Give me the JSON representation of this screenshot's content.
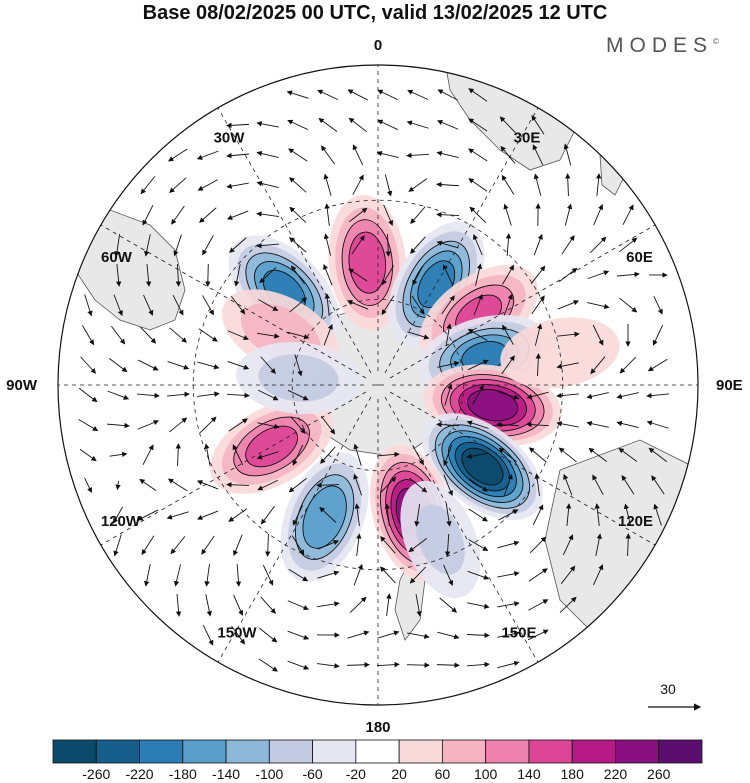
{
  "title": "Base 08/02/2025 00 UTC, valid 13/02/2025 12 UTC",
  "brand": "MODES",
  "brand_mark": "©",
  "projection": "south-polar-stereographic",
  "longitude_labels": [
    {
      "lon": 0,
      "text": "0"
    },
    {
      "lon": 30,
      "text": "30E"
    },
    {
      "lon": 60,
      "text": "60E"
    },
    {
      "lon": 90,
      "text": "90E"
    },
    {
      "lon": 120,
      "text": "120E"
    },
    {
      "lon": 150,
      "text": "150E"
    },
    {
      "lon": 180,
      "text": "180"
    },
    {
      "lon": -150,
      "text": "150W"
    },
    {
      "lon": -120,
      "text": "120W"
    },
    {
      "lon": -90,
      "text": "90W"
    },
    {
      "lon": -60,
      "text": "60W"
    },
    {
      "lon": -30,
      "text": "30W"
    }
  ],
  "vector_reference": "30",
  "colorbar": {
    "ticks": [
      "-260",
      "-220",
      "-180",
      "-140",
      "-100",
      "-60",
      "-20",
      "20",
      "60",
      "100",
      "140",
      "180",
      "220",
      "260"
    ],
    "colors": [
      "#0c4a6b",
      "#155e8c",
      "#2a7db5",
      "#5a9fcc",
      "#8db8da",
      "#c3cbe2",
      "#e6e6f2",
      "#ffffff",
      "#fad9da",
      "#f6b4c3",
      "#ee81ad",
      "#dd4596",
      "#b61a86",
      "#8a1081",
      "#5c0e6f"
    ]
  },
  "anomalies": [
    {
      "lat": -48,
      "lon": -5,
      "value": 170
    },
    {
      "lat": -50,
      "lon": 30,
      "value": -200
    },
    {
      "lat": -48,
      "lon": 55,
      "value": 150
    },
    {
      "lat": -52,
      "lon": 75,
      "value": -190
    },
    {
      "lat": -50,
      "lon": 100,
      "value": 250
    },
    {
      "lat": -45,
      "lon": 128,
      "value": -290
    },
    {
      "lat": -45,
      "lon": 165,
      "value": 250
    },
    {
      "lat": -42,
      "lon": -158,
      "value": -180
    },
    {
      "lat": -48,
      "lon": -120,
      "value": 160
    },
    {
      "lat": -45,
      "lon": -45,
      "value": -200
    },
    {
      "lat": -52,
      "lon": -62,
      "value": 90
    },
    {
      "lat": -62,
      "lon": -85,
      "value": -80
    },
    {
      "lat": -35,
      "lon": 158,
      "value": -70
    },
    {
      "lat": -30,
      "lon": 80,
      "value": 60
    }
  ]
}
